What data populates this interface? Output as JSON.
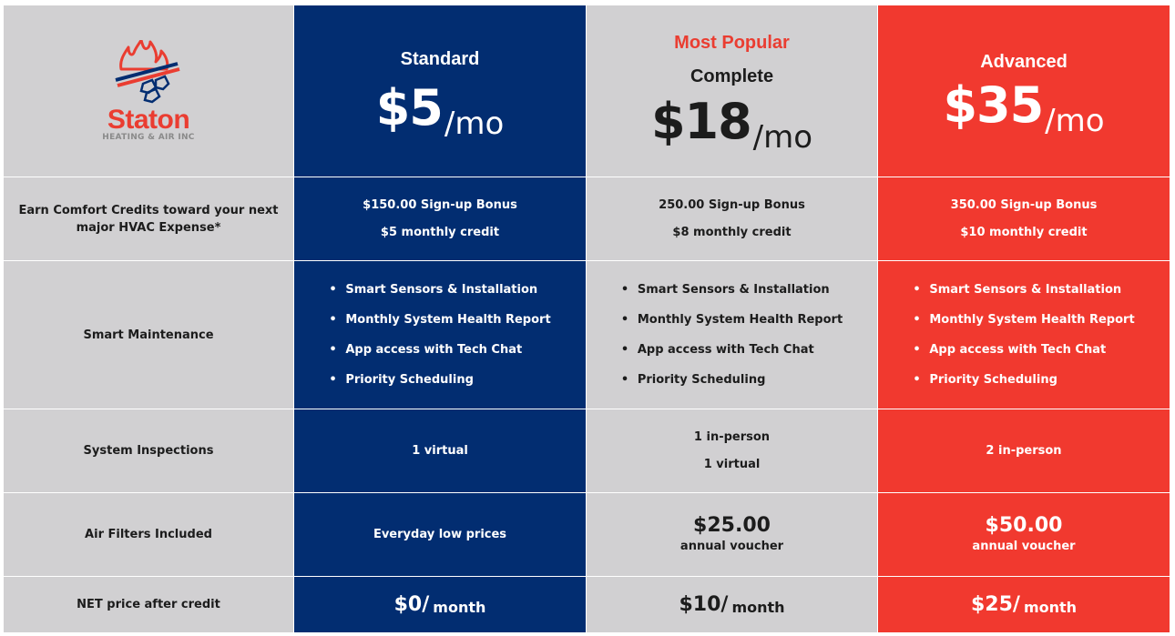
{
  "logo": {
    "name": "Staton",
    "subtitle": "HEATING & AIR INC"
  },
  "plans": [
    {
      "name": "Standard",
      "popular": "",
      "price": "$5",
      "per": "/mo",
      "bonus": "$150.00 Sign-up Bonus",
      "credit": "$5 monthly credit",
      "features": [
        "Smart Sensors & Installation",
        "Monthly System Health Report",
        "App access with Tech Chat",
        "Priority Scheduling"
      ],
      "inspections": [
        "1 virtual"
      ],
      "filters_main": "Everyday low prices",
      "filters_sub": "",
      "net_amount": "$0/",
      "net_unit": "month"
    },
    {
      "name": "Complete",
      "popular": "Most Popular",
      "price": "$18",
      "per": "/mo",
      "bonus": "250.00 Sign-up Bonus",
      "credit": "$8 monthly credit",
      "features": [
        "Smart Sensors & Installation",
        "Monthly System Health Report",
        "App access with Tech Chat",
        "Priority Scheduling"
      ],
      "inspections": [
        "1 in-person",
        "1 virtual"
      ],
      "filters_main": "$25.00",
      "filters_sub": "annual voucher",
      "net_amount": "$10/",
      "net_unit": "month"
    },
    {
      "name": "Advanced",
      "popular": "",
      "price": "$35",
      "per": "/mo",
      "bonus": "350.00 Sign-up Bonus",
      "credit": "$10 monthly credit",
      "features": [
        "Smart Sensors & Installation",
        "Monthly System Health Report",
        "App access with Tech Chat",
        "Priority Scheduling"
      ],
      "inspections": [
        "2 in-person"
      ],
      "filters_main": "$50.00",
      "filters_sub": "annual voucher",
      "net_amount": "$25/",
      "net_unit": "month"
    }
  ],
  "rows": {
    "credits": "Earn Comfort Credits toward your next major HVAC Expense*",
    "maintenance": "Smart Maintenance",
    "inspections": "System Inspections",
    "filters": "Air Filters Included",
    "net": "NET price after credit"
  },
  "colors": {
    "standard": "#022d71",
    "complete": "#d1d0d2",
    "advanced": "#f1392f",
    "label": "#d1d0d2",
    "popular": "#ea3d31"
  }
}
